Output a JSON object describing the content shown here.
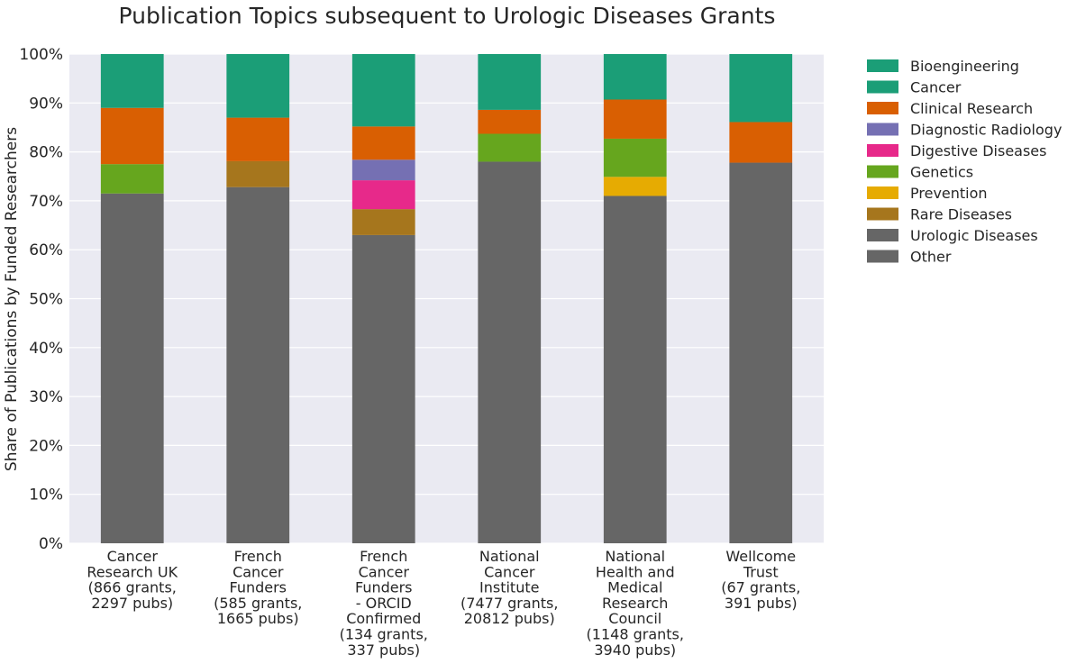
{
  "chart_data": {
    "type": "bar",
    "stacked": true,
    "title": "Publication Topics subsequent to Urologic Diseases Grants",
    "ylabel": "Share of Publications by Funded Researchers",
    "xlabel": "",
    "ylim": [
      0,
      100
    ],
    "y_ticks": [
      "0%",
      "10%",
      "20%",
      "30%",
      "40%",
      "50%",
      "60%",
      "70%",
      "80%",
      "90%",
      "100%"
    ],
    "grid": true,
    "legend_position": "right",
    "categories": [
      [
        "Cancer",
        "Research UK",
        "(866 grants,",
        "2297 pubs)"
      ],
      [
        "French",
        "Cancer",
        "Funders",
        "(585 grants,",
        "1665 pubs)"
      ],
      [
        "French",
        "Cancer",
        "Funders",
        "- ORCID",
        "Confirmed",
        "(134 grants,",
        "337 pubs)"
      ],
      [
        "National",
        "Cancer",
        "Institute",
        "(7477 grants,",
        "20812 pubs)"
      ],
      [
        "National",
        "Health and",
        "Medical",
        "Research",
        "Council",
        "(1148 grants,",
        "3940 pubs)"
      ],
      [
        "Wellcome",
        "Trust",
        "(67 grants,",
        "391 pubs)"
      ]
    ],
    "series": [
      {
        "name": "Other",
        "color": "#666666",
        "values": [
          71.5,
          72.8,
          63.0,
          78.0,
          71.0,
          77.8
        ]
      },
      {
        "name": "Urologic Diseases",
        "color": "#666666",
        "values": [
          0,
          0,
          0,
          0,
          0,
          0
        ]
      },
      {
        "name": "Rare Diseases",
        "color": "#a6761d",
        "values": [
          0,
          5.3,
          5.3,
          0,
          0,
          0
        ]
      },
      {
        "name": "Prevention",
        "color": "#e6ab02",
        "values": [
          0,
          0,
          0,
          0,
          3.9,
          0
        ]
      },
      {
        "name": "Genetics",
        "color": "#66a61e",
        "values": [
          6.0,
          0,
          0,
          5.7,
          7.8,
          0
        ]
      },
      {
        "name": "Digestive Diseases",
        "color": "#e7298a",
        "values": [
          0,
          0,
          5.9,
          0,
          0,
          0
        ]
      },
      {
        "name": "Diagnostic Radiology",
        "color": "#7570b3",
        "values": [
          0,
          0,
          4.2,
          0,
          0,
          0
        ]
      },
      {
        "name": "Clinical Research",
        "color": "#d95f02",
        "values": [
          11.5,
          8.9,
          6.8,
          4.9,
          8.0,
          8.3
        ]
      },
      {
        "name": "Cancer",
        "color": "#1b9e77",
        "values": [
          11.0,
          13.0,
          14.8,
          11.4,
          9.3,
          13.9
        ]
      },
      {
        "name": "Bioengineering",
        "color": "#1b9e77",
        "values": [
          0,
          0,
          0,
          0,
          0,
          0
        ]
      }
    ],
    "legend_order": [
      "Bioengineering",
      "Cancer",
      "Clinical Research",
      "Diagnostic Radiology",
      "Digestive Diseases",
      "Genetics",
      "Prevention",
      "Rare Diseases",
      "Urologic Diseases",
      "Other"
    ],
    "plot_background": "#eaeaf2",
    "grid_color": "#ffffff"
  }
}
